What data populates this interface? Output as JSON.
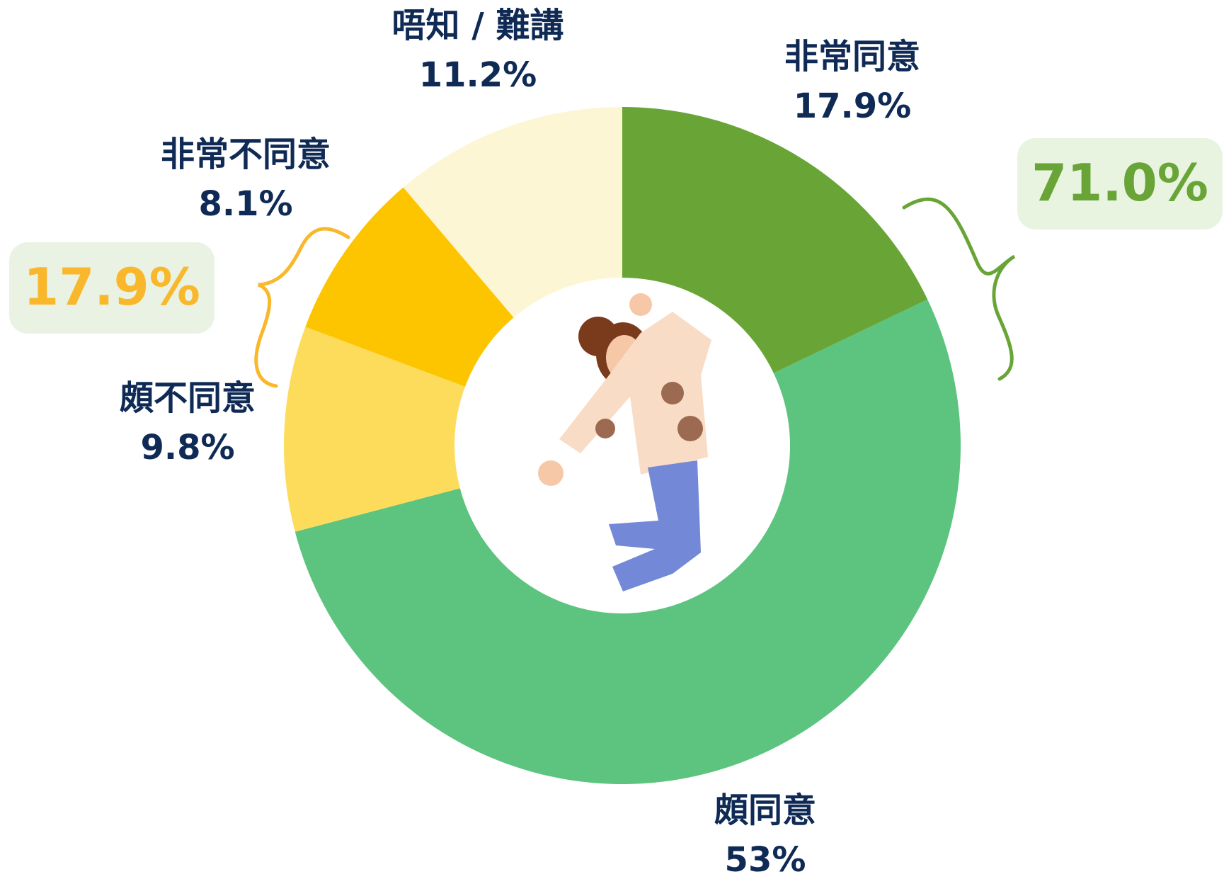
{
  "chart_data": {
    "type": "donut",
    "categories": [
      "非常同意",
      "頗同意",
      "頗不同意",
      "非常不同意",
      "唔知 / 難講"
    ],
    "values": [
      17.9,
      53,
      9.8,
      8.1,
      11.2
    ],
    "value_labels": [
      "17.9%",
      "53%",
      "9.8%",
      "8.1%",
      "11.2%"
    ],
    "colors": [
      "#68a536",
      "#5cc47f",
      "#fddc5c",
      "#fdc500",
      "#fdf6d4"
    ],
    "groups": [
      {
        "value": 71.0,
        "label": "71.0%",
        "color": "#68a536"
      },
      {
        "value": 17.9,
        "label": "17.9%",
        "color": "#f9b82c"
      }
    ]
  }
}
